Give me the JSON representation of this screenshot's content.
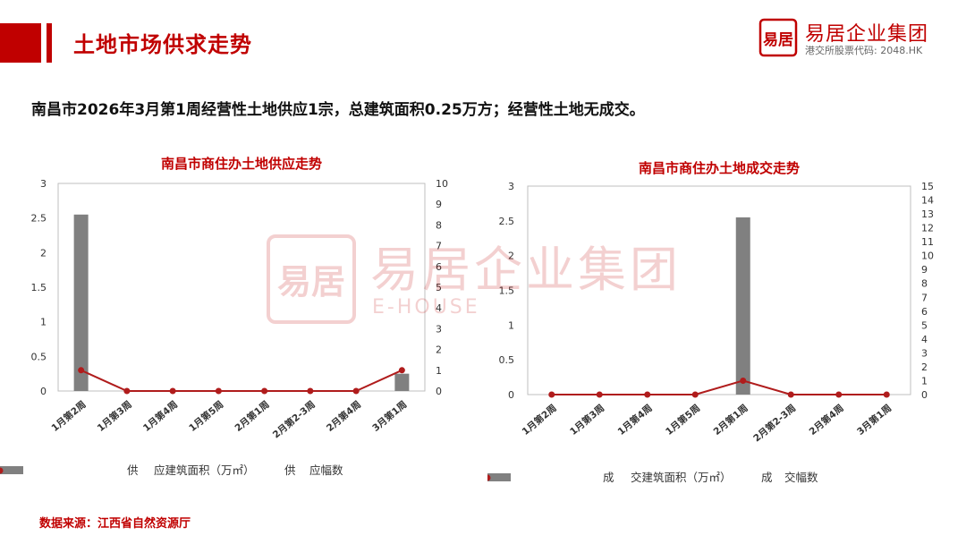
{
  "header": {
    "title": "土地市场供求走势",
    "logo_name": "易居企业集团",
    "logo_sub": "港交所股票代码: 2048.HK",
    "logo_mark_text": "易居",
    "accent_color": "#c00000"
  },
  "headline": "南昌市2026年3月第1周经营性土地供应1宗，总建筑面积0.25万方；经营性土地无成交。",
  "watermark": {
    "name": "易居企业集团",
    "sub": "E-HOUSE"
  },
  "footer": {
    "source": "数据来源：江西省自然资源厅"
  },
  "chart_data": [
    {
      "type": "bar",
      "title": "南昌市商住办土地供应走势",
      "categories": [
        "1月第2周",
        "1月第3周",
        "1月第4周",
        "1月第5周",
        "2月第1周",
        "2月第2-3周",
        "2月第4周",
        "3月第1周"
      ],
      "series": [
        {
          "name": "供应建筑面积（万㎡）",
          "type": "bar",
          "axis": "left",
          "color": "#808080",
          "values": [
            2.55,
            0,
            0,
            0,
            0,
            0,
            0,
            0.25
          ]
        },
        {
          "name": "供应幅数",
          "type": "line",
          "axis": "right",
          "color": "#b01c1c",
          "values": [
            1,
            0,
            0,
            0,
            0,
            0,
            0,
            1
          ]
        }
      ],
      "y_left": {
        "min": 0,
        "max": 3,
        "ticks": [
          0,
          0.5,
          1,
          1.5,
          2,
          2.5,
          3
        ]
      },
      "y_right": {
        "min": 0,
        "max": 10,
        "ticks": [
          0,
          1,
          2,
          3,
          4,
          5,
          6,
          7,
          8,
          9,
          10
        ]
      },
      "legend_position": "bottom"
    },
    {
      "type": "bar",
      "title": "南昌市商住办土地成交走势",
      "categories": [
        "1月第2周",
        "1月第3周",
        "1月第4周",
        "1月第5周",
        "2月第1周",
        "2月第2-3周",
        "2月第4周",
        "3月第1周"
      ],
      "series": [
        {
          "name": "成交建筑面积（万㎡）",
          "type": "bar",
          "axis": "left",
          "color": "#808080",
          "values": [
            0,
            0,
            0,
            0,
            2.55,
            0,
            0,
            0
          ]
        },
        {
          "name": "成交幅数",
          "type": "line",
          "axis": "right",
          "color": "#b01c1c",
          "values": [
            0,
            0,
            0,
            0,
            1,
            0,
            0,
            0
          ]
        }
      ],
      "y_left": {
        "min": 0,
        "max": 3,
        "ticks": [
          0,
          0.5,
          1,
          1.5,
          2,
          2.5,
          3
        ]
      },
      "y_right": {
        "min": 0,
        "max": 15,
        "ticks": [
          0,
          1,
          2,
          3,
          4,
          5,
          6,
          7,
          8,
          9,
          10,
          11,
          12,
          13,
          14,
          15
        ]
      },
      "legend_position": "bottom"
    }
  ]
}
